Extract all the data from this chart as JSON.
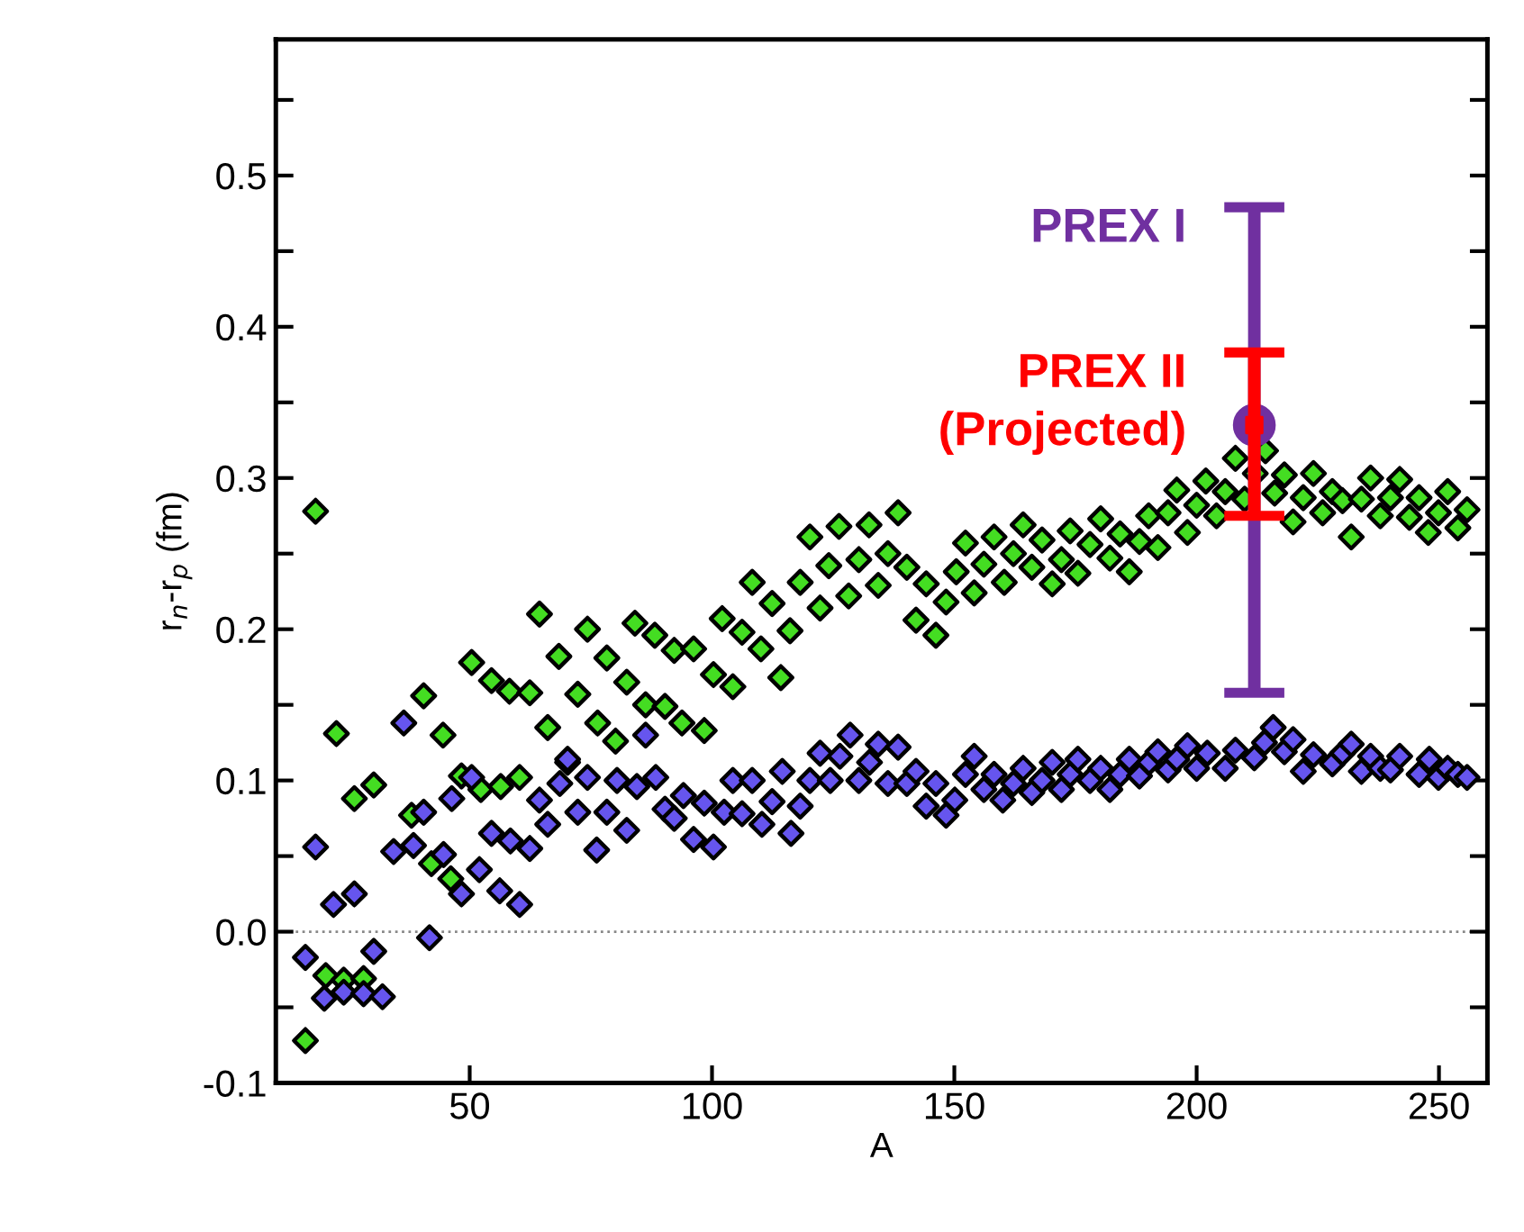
{
  "chart_data": {
    "type": "scatter",
    "xlabel": "A",
    "ylabel": "r$_{n}$-r$_{p}$ (fm)",
    "xlim": [
      10,
      260
    ],
    "ylim": [
      -0.1,
      0.59
    ],
    "xticks": [
      50,
      100,
      150,
      200,
      250
    ],
    "yticks": [
      {
        "value": -0.1,
        "label": "-0.1"
      },
      {
        "value": -0.05,
        "label": null
      },
      {
        "value": 0.0,
        "label": "0.0"
      },
      {
        "value": 0.05,
        "label": null
      },
      {
        "value": 0.1,
        "label": "0.1"
      },
      {
        "value": 0.15,
        "label": null
      },
      {
        "value": 0.2,
        "label": "0.2"
      },
      {
        "value": 0.25,
        "label": null
      },
      {
        "value": 0.3,
        "label": "0.3"
      },
      {
        "value": 0.35,
        "label": null
      },
      {
        "value": 0.4,
        "label": "0.4"
      },
      {
        "value": 0.45,
        "label": null
      },
      {
        "value": 0.5,
        "label": "0.5"
      },
      {
        "value": 0.55,
        "label": null
      }
    ],
    "grid": false,
    "legend": false,
    "marker": "diamond",
    "ref_lines": [
      {
        "axis": "y",
        "value": 0.0,
        "label": null,
        "color": "#888888",
        "line_style": "dotted"
      }
    ],
    "series": [
      {
        "color": "#44dd22",
        "x": [
          18.2,
          22.5,
          26.2,
          30.2,
          16.1,
          20.3,
          24,
          28.1,
          40.5,
          38,
          44.5,
          42.1,
          46.1,
          48.3,
          50.4,
          54.5,
          52.3,
          56.4,
          58.2,
          60.3,
          62.4,
          64.4,
          68.4,
          66.1,
          70.2,
          74.3,
          72.3,
          78.3,
          76.4,
          82.4,
          80.1,
          84.1,
          88.2,
          86.3,
          90.3,
          92.2,
          93.8,
          96.2,
          98.4,
          100.3,
          104.3,
          102.1,
          106.2,
          110.1,
          108.3,
          112.4,
          114.2,
          116.1,
          118.2,
          120.2,
          122.3,
          124.1,
          126.2,
          128.2,
          130.3,
          132.4,
          134.3,
          136.3,
          138.4,
          140.2,
          142.1,
          144.2,
          146.2,
          148.3,
          150.4,
          152.3,
          154.1,
          156.1,
          158.2,
          160.3,
          162.2,
          164.2,
          166,
          168.1,
          170.2,
          172.1,
          173.9,
          175.5,
          178,
          180.2,
          182.1,
          184.2,
          186.1,
          188.2,
          190.1,
          192,
          194.1,
          195.9,
          198.1,
          200,
          201.9,
          204.1,
          205.9,
          208,
          209.9,
          212.1,
          214.2,
          216.1,
          218.1,
          219.9,
          222,
          224.1,
          226,
          228,
          230.1,
          231.9,
          234,
          235.9,
          237.9,
          240,
          241.9,
          243.9,
          245.9,
          247.8,
          249.9,
          251.8,
          253.9,
          255.8
        ],
        "values": [
          0.278,
          0.131,
          0.088,
          0.097,
          -0.072,
          -0.029,
          -0.032,
          -0.031,
          0.156,
          0.077,
          0.13,
          0.045,
          0.035,
          0.103,
          0.178,
          0.166,
          0.094,
          0.096,
          0.159,
          0.102,
          0.158,
          0.21,
          0.182,
          0.135,
          0.112,
          0.2,
          0.157,
          0.181,
          0.138,
          0.165,
          0.126,
          0.204,
          0.196,
          0.15,
          0.149,
          0.186,
          0.138,
          0.187,
          0.133,
          0.17,
          0.162,
          0.207,
          0.198,
          0.187,
          0.231,
          0.217,
          0.168,
          0.199,
          0.231,
          0.261,
          0.214,
          0.242,
          0.268,
          0.222,
          0.246,
          0.269,
          0.229,
          0.25,
          0.277,
          0.241,
          0.206,
          0.23,
          0.196,
          0.218,
          0.238,
          0.257,
          0.224,
          0.243,
          0.261,
          0.231,
          0.25,
          0.269,
          0.241,
          0.259,
          0.23,
          0.246,
          0.265,
          0.237,
          0.256,
          0.273,
          0.247,
          0.263,
          0.238,
          0.258,
          0.275,
          0.254,
          0.277,
          0.292,
          0.264,
          0.282,
          0.298,
          0.275,
          0.291,
          0.313,
          0.286,
          0.303,
          0.318,
          0.29,
          0.302,
          0.271,
          0.287,
          0.303,
          0.277,
          0.291,
          0.285,
          0.261,
          0.286,
          0.3,
          0.275,
          0.287,
          0.299,
          0.274,
          0.287,
          0.264,
          0.277,
          0.291,
          0.267,
          0.279
        ]
      },
      {
        "color": "#6655ee",
        "x": [
          18.2,
          16.1,
          21.9,
          26.2,
          30.2,
          20,
          24,
          28.1,
          32,
          36.4,
          34.3,
          38.4,
          40.5,
          41.7,
          44.6,
          48.3,
          46.3,
          50.4,
          52,
          54.5,
          56.2,
          58.4,
          60.3,
          62.4,
          64.4,
          66.1,
          68.6,
          70.2,
          72.3,
          74.3,
          76.2,
          78.3,
          80.4,
          82.4,
          84.5,
          86.3,
          88.4,
          90.3,
          92.2,
          94.1,
          96.2,
          98.4,
          100.3,
          102.5,
          104.3,
          106.2,
          108.3,
          110.3,
          112.4,
          114.5,
          116.3,
          118.2,
          120.2,
          122.3,
          124.4,
          126.4,
          128.5,
          130.3,
          132.5,
          134.3,
          136.3,
          138.4,
          140.2,
          142.1,
          144.2,
          146.2,
          148.3,
          150.1,
          152.3,
          154.1,
          156.1,
          158.2,
          160,
          162.2,
          164.2,
          166,
          168.1,
          170.2,
          172.1,
          173.9,
          175.5,
          178,
          180.2,
          182.1,
          184.2,
          186.1,
          188.2,
          190.2,
          192,
          194.1,
          195.9,
          198.1,
          200,
          202.2,
          205.9,
          208,
          211.9,
          214,
          215.8,
          218.1,
          219.9,
          222,
          224.1,
          228,
          230.1,
          231.9,
          234,
          235.9,
          237.9,
          240,
          241.9,
          245.9,
          248,
          249.9,
          251.8,
          253.9,
          255.8
        ],
        "values": [
          0.056,
          -0.017,
          0.018,
          0.025,
          -0.013,
          -0.044,
          -0.04,
          -0.041,
          -0.043,
          0.138,
          0.053,
          0.057,
          0.079,
          -0.004,
          0.051,
          0.025,
          0.088,
          0.102,
          0.041,
          0.065,
          0.027,
          0.06,
          0.018,
          0.055,
          0.087,
          0.071,
          0.098,
          0.114,
          0.079,
          0.102,
          0.054,
          0.079,
          0.1,
          0.067,
          0.096,
          0.13,
          0.102,
          0.081,
          0.075,
          0.09,
          0.061,
          0.085,
          0.056,
          0.079,
          0.1,
          0.078,
          0.1,
          0.071,
          0.086,
          0.106,
          0.065,
          0.083,
          0.1,
          0.118,
          0.1,
          0.116,
          0.13,
          0.1,
          0.112,
          0.124,
          0.098,
          0.122,
          0.098,
          0.106,
          0.083,
          0.098,
          0.077,
          0.087,
          0.104,
          0.116,
          0.094,
          0.104,
          0.087,
          0.098,
          0.108,
          0.092,
          0.1,
          0.112,
          0.094,
          0.104,
          0.114,
          0.1,
          0.108,
          0.094,
          0.104,
          0.114,
          0.103,
          0.112,
          0.119,
          0.107,
          0.114,
          0.123,
          0.108,
          0.118,
          0.108,
          0.12,
          0.115,
          0.125,
          0.135,
          0.119,
          0.127,
          0.106,
          0.117,
          0.111,
          0.118,
          0.124,
          0.106,
          0.116,
          0.108,
          0.107,
          0.116,
          0.104,
          0.114,
          0.102,
          0.108,
          0.104,
          0.102
        ]
      },
      {
        "name": "PREX I",
        "color": "#7030a0",
        "marker": "circle",
        "x": [
          211.9
        ],
        "values": [
          0.335
        ],
        "errors": [
          [
            0.158,
            0.479
          ]
        ]
      },
      {
        "name": "PREX II\n(Projected)",
        "color": "#ff0000",
        "marker": "square",
        "x": [
          211.9
        ],
        "values": [
          0.335
        ],
        "errors": [
          [
            0.275,
            0.383
          ]
        ]
      }
    ]
  }
}
